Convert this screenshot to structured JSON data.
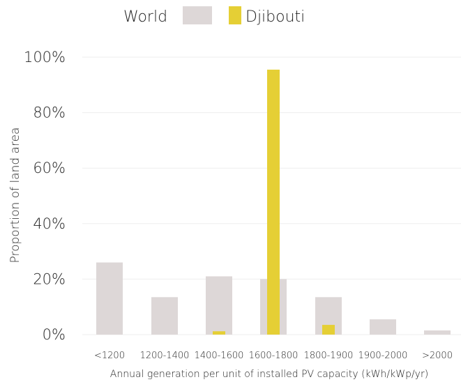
{
  "chart_data": {
    "type": "bar",
    "categories": [
      "<1200",
      "1200-1400",
      "1400-1600",
      "1600-1800",
      "1800-1900",
      "1900-2000",
      ">2000"
    ],
    "series": [
      {
        "name": "World",
        "values": [
          26,
          13.5,
          21,
          20,
          13.5,
          5.5,
          1.5
        ],
        "color": "#ddd7d7"
      },
      {
        "name": "Djibouti",
        "values": [
          0,
          0,
          1.2,
          95.5,
          3.5,
          0,
          0
        ],
        "color": "#e5cf35"
      }
    ],
    "xlabel": "Annual generation per unit of installed PV capacity (kWh/kWp/yr)",
    "ylabel": "Proportion of land area",
    "ylim": [
      0,
      100
    ],
    "yticks": [
      "0%",
      "20%",
      "40%",
      "60%",
      "80%",
      "100%"
    ],
    "grid": true,
    "legend_position": "top"
  }
}
